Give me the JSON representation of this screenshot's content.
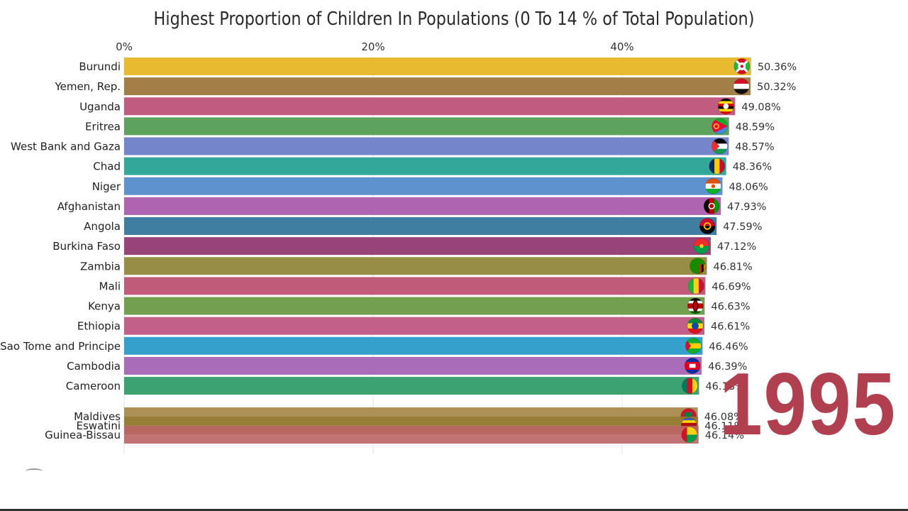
{
  "chart_data": {
    "type": "bar",
    "title": "Highest Proportion of Children In Populations (0 To 14 % of Total Population)",
    "year": "1995",
    "x_ticks": [
      "0%",
      "20%",
      "40%"
    ],
    "xlim": [
      0,
      57
    ],
    "series": [
      {
        "name": "Burundi",
        "value": 50.36,
        "label": "50.36%",
        "color": "#E7BA30",
        "flag": "burundi-flag"
      },
      {
        "name": "Yemen, Rep.",
        "value": 50.32,
        "label": "50.32%",
        "color": "#A37F48",
        "flag": "yemen-flag"
      },
      {
        "name": "Uganda",
        "value": 49.08,
        "label": "49.08%",
        "color": "#C05C80",
        "flag": "uganda-flag"
      },
      {
        "name": "Eritrea",
        "value": 48.59,
        "label": "48.59%",
        "color": "#5DA25D",
        "flag": "eritrea-flag"
      },
      {
        "name": "West Bank and Gaza",
        "value": 48.57,
        "label": "48.57%",
        "color": "#7485CC",
        "flag": "palestine-flag"
      },
      {
        "name": "Chad",
        "value": 48.36,
        "label": "48.36%",
        "color": "#32A89A",
        "flag": "chad-flag"
      },
      {
        "name": "Niger",
        "value": 48.06,
        "label": "48.06%",
        "color": "#5D92CF",
        "flag": "niger-flag"
      },
      {
        "name": "Afghanistan",
        "value": 47.93,
        "label": "47.93%",
        "color": "#AE64B0",
        "flag": "afghanistan-flag"
      },
      {
        "name": "Angola",
        "value": 47.59,
        "label": "47.59%",
        "color": "#3F7EA0",
        "flag": "angola-flag"
      },
      {
        "name": "Burkina Faso",
        "value": 47.12,
        "label": "47.12%",
        "color": "#984479",
        "flag": "burkina-faso-flag"
      },
      {
        "name": "Zambia",
        "value": 46.81,
        "label": "46.81%",
        "color": "#988D45",
        "flag": "zambia-flag"
      },
      {
        "name": "Mali",
        "value": 46.69,
        "label": "46.69%",
        "color": "#C05C7A",
        "flag": "mali-flag"
      },
      {
        "name": "Kenya",
        "value": 46.63,
        "label": "46.63%",
        "color": "#72A04E",
        "flag": "kenya-flag"
      },
      {
        "name": "Ethiopia",
        "value": 46.61,
        "label": "46.61%",
        "color": "#C3608A",
        "flag": "ethiopia-flag"
      },
      {
        "name": "Sao Tome and Principe",
        "value": 46.46,
        "label": "46.46%",
        "color": "#35A0CC",
        "flag": "sao-tome-flag"
      },
      {
        "name": "Cambodia",
        "value": 46.39,
        "label": "46.39%",
        "color": "#A96CB8",
        "flag": "cambodia-flag"
      },
      {
        "name": "Cameroon",
        "value": 46.18,
        "label": "46.18%",
        "color": "#3DA272",
        "flag": "cameroon-flag"
      },
      {
        "name": "Maldives",
        "value": 46.08,
        "label": "46.08%",
        "color": "#A48444",
        "flag": "maldives-flag"
      },
      {
        "name": "Eswatini",
        "value": 46.11,
        "label": "46.11%",
        "color": "#937C34",
        "flag": "eswatini-flag"
      },
      {
        "name": "Guinea-Bissau",
        "value": 46.14,
        "label": "46.14%",
        "color": "#BA6464",
        "flag": "guinea-bissau-flag"
      }
    ]
  }
}
